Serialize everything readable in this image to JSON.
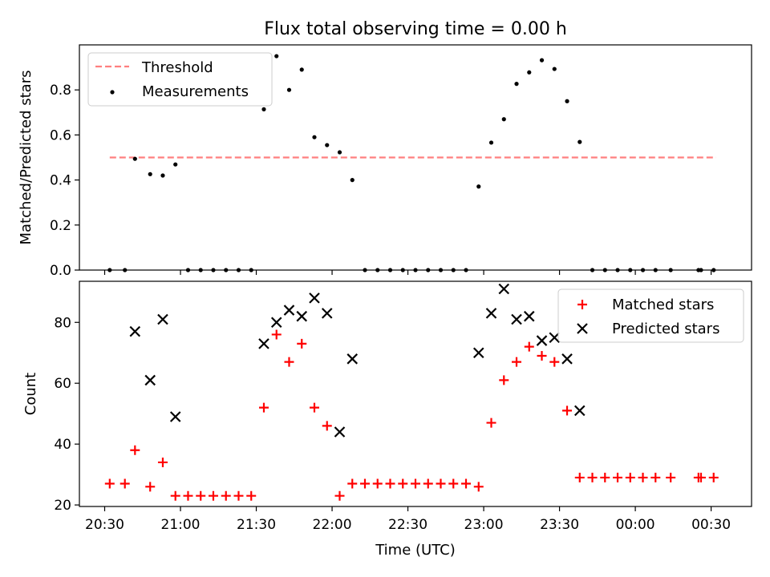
{
  "chart_data": [
    {
      "type": "scatter",
      "title": "Flux total observing time = 0.00 h",
      "xlabel": "",
      "ylabel": "Matched/Predicted stars",
      "xlim": [
        "20:20",
        "00:46"
      ],
      "ylim": [
        0,
        1.0
      ],
      "yticks": [
        0.0,
        0.2,
        0.4,
        0.6,
        0.8
      ],
      "ytick_labels": [
        "0.0",
        "0.2",
        "0.4",
        "0.6",
        "0.8"
      ],
      "grid": false,
      "legend": "upper-left",
      "threshold": {
        "name": "Threshold",
        "color": "#ff7f7f",
        "style": "dashed",
        "y": 0.5,
        "x_start": "20:32",
        "x_end": "00:32"
      },
      "series": [
        {
          "name": "Measurements",
          "color": "#000000",
          "marker": "dot",
          "points": [
            [
              "20:32",
              0.0
            ],
            [
              "20:38",
              0.0
            ],
            [
              "20:42",
              0.494
            ],
            [
              "20:48",
              0.426
            ],
            [
              "20:53",
              0.42
            ],
            [
              "20:58",
              0.469
            ],
            [
              "21:03",
              0.0
            ],
            [
              "21:08",
              0.0
            ],
            [
              "21:13",
              0.0
            ],
            [
              "21:18",
              0.0
            ],
            [
              "21:23",
              0.0
            ],
            [
              "21:28",
              0.0
            ],
            [
              "21:33",
              0.714
            ],
            [
              "21:38",
              0.95
            ],
            [
              "21:43",
              0.8
            ],
            [
              "21:48",
              0.89
            ],
            [
              "21:53",
              0.59
            ],
            [
              "21:58",
              0.555
            ],
            [
              "22:03",
              0.523
            ],
            [
              "22:08",
              0.4
            ],
            [
              "22:13",
              0.0
            ],
            [
              "22:18",
              0.0
            ],
            [
              "22:23",
              0.0
            ],
            [
              "22:28",
              0.0
            ],
            [
              "22:33",
              0.0
            ],
            [
              "22:38",
              0.0
            ],
            [
              "22:43",
              0.0
            ],
            [
              "22:48",
              0.0
            ],
            [
              "22:53",
              0.0
            ],
            [
              "22:58",
              0.371
            ],
            [
              "23:03",
              0.566
            ],
            [
              "23:08",
              0.67
            ],
            [
              "23:13",
              0.827
            ],
            [
              "23:18",
              0.878
            ],
            [
              "23:23",
              0.932
            ],
            [
              "23:28",
              0.893
            ],
            [
              "23:33",
              0.75
            ],
            [
              "23:38",
              0.569
            ],
            [
              "23:43",
              0.0
            ],
            [
              "23:48",
              0.0
            ],
            [
              "23:53",
              0.0
            ],
            [
              "23:58",
              0.0
            ],
            [
              "00:03",
              0.0
            ],
            [
              "00:08",
              0.0
            ],
            [
              "00:14",
              0.0
            ],
            [
              "00:25",
              0.0
            ],
            [
              "00:26",
              0.0
            ],
            [
              "00:31",
              0.0
            ]
          ]
        }
      ]
    },
    {
      "type": "scatter",
      "title": "",
      "xlabel": "Time (UTC)",
      "ylabel": "Count",
      "xlim": [
        "20:20",
        "00:46"
      ],
      "ylim": [
        19.5,
        93.5
      ],
      "yticks": [
        20,
        40,
        60,
        80
      ],
      "ytick_labels": [
        "20",
        "40",
        "60",
        "80"
      ],
      "xticks": [
        "20:30",
        "21:00",
        "21:30",
        "22:00",
        "22:30",
        "23:00",
        "23:30",
        "00:00",
        "00:30"
      ],
      "xtick_labels": [
        "20:30",
        "21:00",
        "21:30",
        "22:00",
        "22:30",
        "23:00",
        "23:30",
        "00:00",
        "00:30"
      ],
      "grid": false,
      "legend": "upper-right",
      "series": [
        {
          "name": "Matched stars",
          "color": "#ff0000",
          "marker": "plus",
          "points": [
            [
              "20:32",
              27
            ],
            [
              "20:38",
              27
            ],
            [
              "20:42",
              38
            ],
            [
              "20:48",
              26
            ],
            [
              "20:53",
              34
            ],
            [
              "20:58",
              23
            ],
            [
              "21:03",
              23
            ],
            [
              "21:08",
              23
            ],
            [
              "21:13",
              23
            ],
            [
              "21:18",
              23
            ],
            [
              "21:23",
              23
            ],
            [
              "21:28",
              23
            ],
            [
              "21:33",
              52
            ],
            [
              "21:38",
              76
            ],
            [
              "21:43",
              67
            ],
            [
              "21:48",
              73
            ],
            [
              "21:53",
              52
            ],
            [
              "21:58",
              46
            ],
            [
              "22:03",
              23
            ],
            [
              "22:08",
              27
            ],
            [
              "22:13",
              27
            ],
            [
              "22:18",
              27
            ],
            [
              "22:23",
              27
            ],
            [
              "22:28",
              27
            ],
            [
              "22:33",
              27
            ],
            [
              "22:38",
              27
            ],
            [
              "22:43",
              27
            ],
            [
              "22:48",
              27
            ],
            [
              "22:53",
              27
            ],
            [
              "22:58",
              26
            ],
            [
              "23:03",
              47
            ],
            [
              "23:08",
              61
            ],
            [
              "23:13",
              67
            ],
            [
              "23:18",
              72
            ],
            [
              "23:23",
              69
            ],
            [
              "23:28",
              67
            ],
            [
              "23:33",
              51
            ],
            [
              "23:38",
              29
            ],
            [
              "23:43",
              29
            ],
            [
              "23:48",
              29
            ],
            [
              "23:53",
              29
            ],
            [
              "23:58",
              29
            ],
            [
              "00:03",
              29
            ],
            [
              "00:08",
              29
            ],
            [
              "00:14",
              29
            ],
            [
              "00:25",
              29
            ],
            [
              "00:26",
              29
            ],
            [
              "00:31",
              29
            ]
          ]
        },
        {
          "name": "Predicted stars",
          "color": "#000000",
          "marker": "x",
          "points": [
            [
              "20:42",
              77
            ],
            [
              "20:48",
              61
            ],
            [
              "20:53",
              81
            ],
            [
              "20:58",
              49
            ],
            [
              "21:33",
              73
            ],
            [
              "21:38",
              80
            ],
            [
              "21:43",
              84
            ],
            [
              "21:48",
              82
            ],
            [
              "21:53",
              88
            ],
            [
              "21:58",
              83
            ],
            [
              "22:03",
              44
            ],
            [
              "22:08",
              68
            ],
            [
              "22:58",
              70
            ],
            [
              "23:03",
              83
            ],
            [
              "23:08",
              91
            ],
            [
              "23:13",
              81
            ],
            [
              "23:18",
              82
            ],
            [
              "23:23",
              74
            ],
            [
              "23:28",
              75
            ],
            [
              "23:33",
              68
            ],
            [
              "23:38",
              51
            ]
          ]
        }
      ]
    }
  ]
}
